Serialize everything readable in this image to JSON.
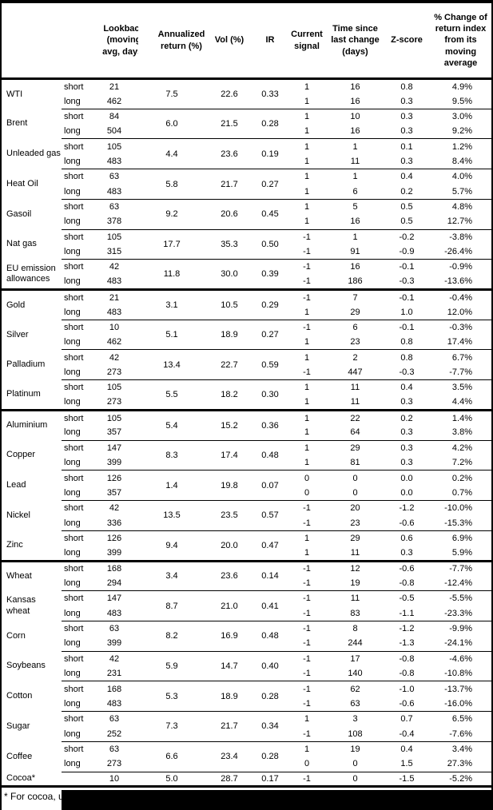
{
  "table": {
    "corner": "",
    "columns": [
      "Lookback (moving avg, days)",
      "Annualized return (%)",
      "Vol (%)",
      "IR",
      "Current signal",
      "Time since last change (days)",
      "Z-score",
      "% Change of return index from its moving average"
    ],
    "commodities": [
      {
        "name": "WTI",
        "thick_divider": false,
        "ann": "7.5",
        "vol": "22.6",
        "ir": "0.33",
        "rows": [
          {
            "label": "short",
            "lookback": "21",
            "signal": "1",
            "time": "16",
            "z": "0.8",
            "change": "4.9%"
          },
          {
            "label": "long",
            "lookback": "462",
            "signal": "1",
            "time": "16",
            "z": "0.3",
            "change": "9.5%"
          }
        ]
      },
      {
        "name": "Brent",
        "thick_divider": false,
        "ann": "6.0",
        "vol": "21.5",
        "ir": "0.28",
        "rows": [
          {
            "label": "short",
            "lookback": "84",
            "signal": "1",
            "time": "10",
            "z": "0.3",
            "change": "3.0%"
          },
          {
            "label": "long",
            "lookback": "504",
            "signal": "1",
            "time": "16",
            "z": "0.3",
            "change": "9.2%"
          }
        ]
      },
      {
        "name": "Unleaded gas",
        "thick_divider": false,
        "ann": "4.4",
        "vol": "23.6",
        "ir": "0.19",
        "rows": [
          {
            "label": "short",
            "lookback": "105",
            "signal": "1",
            "time": "1",
            "z": "0.1",
            "change": "1.2%"
          },
          {
            "label": "long",
            "lookback": "483",
            "signal": "1",
            "time": "11",
            "z": "0.3",
            "change": "8.4%"
          }
        ]
      },
      {
        "name": "Heat Oil",
        "thick_divider": false,
        "ann": "5.8",
        "vol": "21.7",
        "ir": "0.27",
        "rows": [
          {
            "label": "short",
            "lookback": "63",
            "signal": "1",
            "time": "1",
            "z": "0.4",
            "change": "4.0%"
          },
          {
            "label": "long",
            "lookback": "483",
            "signal": "1",
            "time": "6",
            "z": "0.2",
            "change": "5.7%"
          }
        ]
      },
      {
        "name": "Gasoil",
        "thick_divider": false,
        "ann": "9.2",
        "vol": "20.6",
        "ir": "0.45",
        "rows": [
          {
            "label": "short",
            "lookback": "63",
            "signal": "1",
            "time": "5",
            "z": "0.5",
            "change": "4.8%"
          },
          {
            "label": "long",
            "lookback": "378",
            "signal": "1",
            "time": "16",
            "z": "0.5",
            "change": "12.7%"
          }
        ]
      },
      {
        "name": "Nat gas",
        "thick_divider": false,
        "ann": "17.7",
        "vol": "35.3",
        "ir": "0.50",
        "rows": [
          {
            "label": "short",
            "lookback": "105",
            "signal": "-1",
            "time": "1",
            "z": "-0.2",
            "change": "-3.8%"
          },
          {
            "label": "long",
            "lookback": "315",
            "signal": "-1",
            "time": "91",
            "z": "-0.9",
            "change": "-26.4%"
          }
        ]
      },
      {
        "name": "EU emission allowances",
        "thick_divider": false,
        "ann": "11.8",
        "vol": "30.0",
        "ir": "0.39",
        "rows": [
          {
            "label": "short",
            "lookback": "42",
            "signal": "-1",
            "time": "16",
            "z": "-0.1",
            "change": "-0.9%"
          },
          {
            "label": "long",
            "lookback": "483",
            "signal": "-1",
            "time": "186",
            "z": "-0.3",
            "change": "-13.6%"
          }
        ]
      },
      {
        "name": "Gold",
        "thick_divider": true,
        "ann": "3.1",
        "vol": "10.5",
        "ir": "0.29",
        "rows": [
          {
            "label": "short",
            "lookback": "21",
            "signal": "-1",
            "time": "7",
            "z": "-0.1",
            "change": "-0.4%"
          },
          {
            "label": "long",
            "lookback": "483",
            "signal": "1",
            "time": "29",
            "z": "1.0",
            "change": "12.0%"
          }
        ]
      },
      {
        "name": "Silver",
        "thick_divider": false,
        "ann": "5.1",
        "vol": "18.9",
        "ir": "0.27",
        "rows": [
          {
            "label": "short",
            "lookback": "10",
            "signal": "-1",
            "time": "6",
            "z": "-0.1",
            "change": "-0.3%"
          },
          {
            "label": "long",
            "lookback": "462",
            "signal": "1",
            "time": "23",
            "z": "0.8",
            "change": "17.4%"
          }
        ]
      },
      {
        "name": "Palladium",
        "thick_divider": false,
        "ann": "13.4",
        "vol": "22.7",
        "ir": "0.59",
        "rows": [
          {
            "label": "short",
            "lookback": "42",
            "signal": "1",
            "time": "2",
            "z": "0.8",
            "change": "6.7%"
          },
          {
            "label": "long",
            "lookback": "273",
            "signal": "-1",
            "time": "447",
            "z": "-0.3",
            "change": "-7.7%"
          }
        ]
      },
      {
        "name": "Platinum",
        "thick_divider": false,
        "ann": "5.5",
        "vol": "18.2",
        "ir": "0.30",
        "rows": [
          {
            "label": "short",
            "lookback": "105",
            "signal": "1",
            "time": "11",
            "z": "0.4",
            "change": "3.5%"
          },
          {
            "label": "long",
            "lookback": "273",
            "signal": "1",
            "time": "11",
            "z": "0.3",
            "change": "4.4%"
          }
        ]
      },
      {
        "name": "Aluminium",
        "thick_divider": true,
        "ann": "5.4",
        "vol": "15.2",
        "ir": "0.36",
        "rows": [
          {
            "label": "short",
            "lookback": "105",
            "signal": "1",
            "time": "22",
            "z": "0.2",
            "change": "1.4%"
          },
          {
            "label": "long",
            "lookback": "357",
            "signal": "1",
            "time": "64",
            "z": "0.3",
            "change": "3.8%"
          }
        ]
      },
      {
        "name": "Copper",
        "thick_divider": false,
        "ann": "8.3",
        "vol": "17.4",
        "ir": "0.48",
        "rows": [
          {
            "label": "short",
            "lookback": "147",
            "signal": "1",
            "time": "29",
            "z": "0.3",
            "change": "4.2%"
          },
          {
            "label": "long",
            "lookback": "399",
            "signal": "1",
            "time": "81",
            "z": "0.3",
            "change": "7.2%"
          }
        ]
      },
      {
        "name": "Lead",
        "thick_divider": false,
        "ann": "1.4",
        "vol": "19.8",
        "ir": "0.07",
        "rows": [
          {
            "label": "short",
            "lookback": "126",
            "signal": "0",
            "time": "0",
            "z": "0.0",
            "change": "0.2%"
          },
          {
            "label": "long",
            "lookback": "357",
            "signal": "0",
            "time": "0",
            "z": "0.0",
            "change": "0.7%"
          }
        ]
      },
      {
        "name": "Nickel",
        "thick_divider": false,
        "ann": "13.5",
        "vol": "23.5",
        "ir": "0.57",
        "rows": [
          {
            "label": "short",
            "lookback": "42",
            "signal": "-1",
            "time": "20",
            "z": "-1.2",
            "change": "-10.0%"
          },
          {
            "label": "long",
            "lookback": "336",
            "signal": "-1",
            "time": "23",
            "z": "-0.6",
            "change": "-15.3%"
          }
        ]
      },
      {
        "name": "Zinc",
        "thick_divider": false,
        "ann": "9.4",
        "vol": "20.0",
        "ir": "0.47",
        "rows": [
          {
            "label": "short",
            "lookback": "126",
            "signal": "1",
            "time": "29",
            "z": "0.6",
            "change": "6.9%"
          },
          {
            "label": "long",
            "lookback": "399",
            "signal": "1",
            "time": "11",
            "z": "0.3",
            "change": "5.9%"
          }
        ]
      },
      {
        "name": "Wheat",
        "thick_divider": true,
        "ann": "3.4",
        "vol": "23.6",
        "ir": "0.14",
        "rows": [
          {
            "label": "short",
            "lookback": "168",
            "signal": "-1",
            "time": "12",
            "z": "-0.6",
            "change": "-7.7%"
          },
          {
            "label": "long",
            "lookback": "294",
            "signal": "-1",
            "time": "19",
            "z": "-0.8",
            "change": "-12.4%"
          }
        ]
      },
      {
        "name": "Kansas wheat",
        "thick_divider": false,
        "ann": "8.7",
        "vol": "21.0",
        "ir": "0.41",
        "rows": [
          {
            "label": "short",
            "lookback": "147",
            "signal": "-1",
            "time": "11",
            "z": "-0.5",
            "change": "-5.5%"
          },
          {
            "label": "long",
            "lookback": "483",
            "signal": "-1",
            "time": "83",
            "z": "-1.1",
            "change": "-23.3%"
          }
        ]
      },
      {
        "name": "Corn",
        "thick_divider": false,
        "ann": "8.2",
        "vol": "16.9",
        "ir": "0.48",
        "rows": [
          {
            "label": "short",
            "lookback": "63",
            "signal": "-1",
            "time": "8",
            "z": "-1.2",
            "change": "-9.9%"
          },
          {
            "label": "long",
            "lookback": "399",
            "signal": "-1",
            "time": "244",
            "z": "-1.3",
            "change": "-24.1%"
          }
        ]
      },
      {
        "name": "Soybeans",
        "thick_divider": false,
        "ann": "5.9",
        "vol": "14.7",
        "ir": "0.40",
        "rows": [
          {
            "label": "short",
            "lookback": "42",
            "signal": "-1",
            "time": "17",
            "z": "-0.8",
            "change": "-4.6%"
          },
          {
            "label": "long",
            "lookback": "231",
            "signal": "-1",
            "time": "140",
            "z": "-0.8",
            "change": "-10.8%"
          }
        ]
      },
      {
        "name": "Cotton",
        "thick_divider": false,
        "ann": "5.3",
        "vol": "18.9",
        "ir": "0.28",
        "rows": [
          {
            "label": "short",
            "lookback": "168",
            "signal": "-1",
            "time": "62",
            "z": "-1.0",
            "change": "-13.7%"
          },
          {
            "label": "long",
            "lookback": "483",
            "signal": "-1",
            "time": "63",
            "z": "-0.6",
            "change": "-16.0%"
          }
        ]
      },
      {
        "name": "Sugar",
        "thick_divider": false,
        "ann": "7.3",
        "vol": "21.7",
        "ir": "0.34",
        "rows": [
          {
            "label": "short",
            "lookback": "63",
            "signal": "1",
            "time": "3",
            "z": "0.7",
            "change": "6.5%"
          },
          {
            "label": "long",
            "lookback": "252",
            "signal": "-1",
            "time": "108",
            "z": "-0.4",
            "change": "-7.6%"
          }
        ]
      },
      {
        "name": "Coffee",
        "thick_divider": false,
        "ann": "6.6",
        "vol": "23.4",
        "ir": "0.28",
        "rows": [
          {
            "label": "short",
            "lookback": "63",
            "signal": "1",
            "time": "19",
            "z": "0.4",
            "change": "3.4%"
          },
          {
            "label": "long",
            "lookback": "273",
            "signal": "0",
            "time": "0",
            "z": "1.5",
            "change": "27.3%"
          }
        ]
      },
      {
        "name": "Cocoa*",
        "thick_divider": false,
        "ann": "5.0",
        "vol": "28.7",
        "ir": "0.17",
        "rows": [
          {
            "label": "",
            "lookback": "10",
            "signal": "-1",
            "time": "0",
            "z": "-1.5",
            "change": "-5.2%"
          }
        ]
      }
    ]
  },
  "footnote": {
    "text": "* For cocoa, uses",
    "redacted": true
  }
}
